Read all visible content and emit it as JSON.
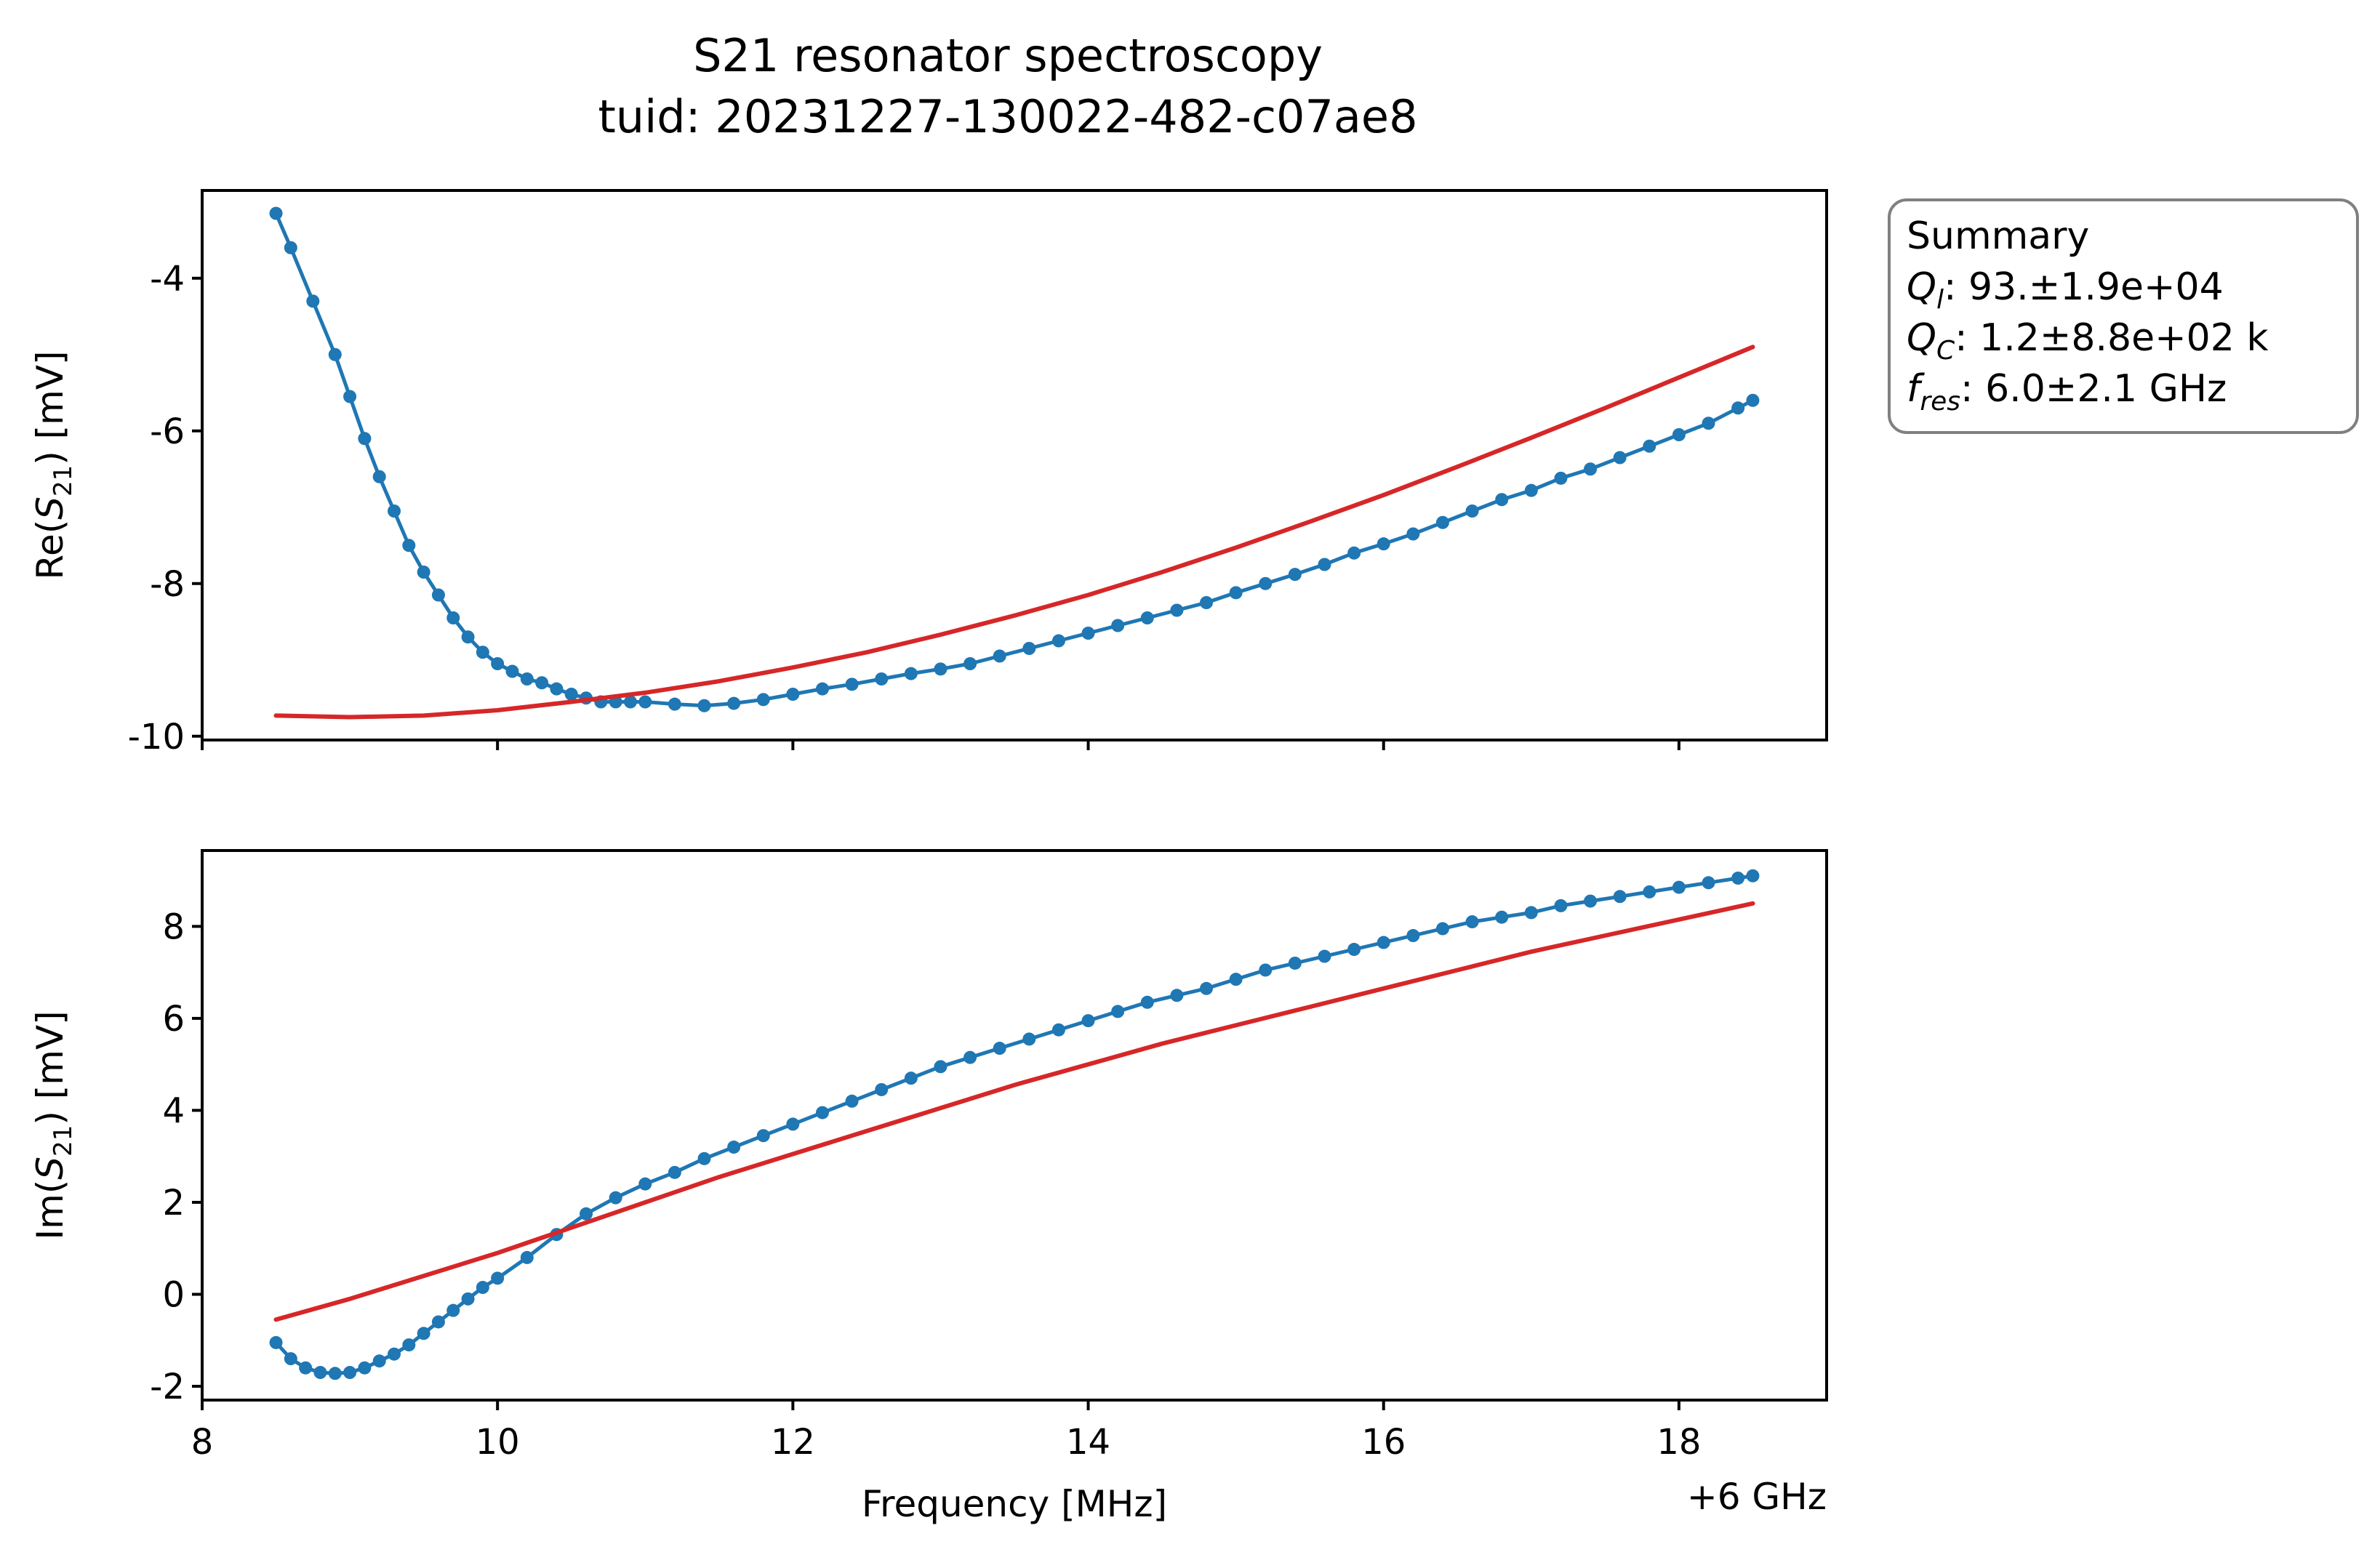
{
  "figure": {
    "title_line1": "S21 resonator spectroscopy",
    "title_line2": "tuid: 20231227-130022-482-c07ae8"
  },
  "summary_box": {
    "heading": "Summary",
    "rows": [
      {
        "sym": "Q",
        "sub": "l",
        "value": ": 93.±1.9e+04"
      },
      {
        "sym": "Q",
        "sub": "C",
        "value": ": 1.2±8.8e+02 k"
      },
      {
        "sym": "f",
        "sub": "res",
        "value": ": 6.0±2.1 GHz"
      }
    ],
    "border_color": "#808080"
  },
  "chart_data": [
    {
      "type": "line",
      "panel": "top",
      "ylabel_prefix": "Re(",
      "ylabel_sym": "S",
      "ylabel_sub": "21",
      "ylabel_suffix": ") [mV]",
      "xlim": [
        8,
        19
      ],
      "ylim": [
        -10.05,
        -2.85
      ],
      "xticks": [
        8,
        10,
        12,
        14,
        16,
        18
      ],
      "show_xtick_labels": false,
      "yticks": [
        -10,
        -8,
        -6,
        -4
      ],
      "ytick_labels": [
        "-10",
        "-8",
        "-6",
        "-4"
      ],
      "grid": false,
      "series": [
        {
          "role": "measured",
          "color": "#1f77b4",
          "style": "line+markers",
          "x": [
            8.5,
            8.6,
            8.75,
            8.9,
            9.0,
            9.1,
            9.2,
            9.3,
            9.4,
            9.5,
            9.6,
            9.7,
            9.8,
            9.9,
            10.0,
            10.1,
            10.2,
            10.3,
            10.4,
            10.5,
            10.6,
            10.7,
            10.8,
            10.9,
            11.0,
            11.2,
            11.4,
            11.6,
            11.8,
            12.0,
            12.2,
            12.4,
            12.6,
            12.8,
            13.0,
            13.2,
            13.4,
            13.6,
            13.8,
            14.0,
            14.2,
            14.4,
            14.6,
            14.8,
            15.0,
            15.2,
            15.4,
            15.6,
            15.8,
            16.0,
            16.2,
            16.4,
            16.6,
            16.8,
            17.0,
            17.2,
            17.4,
            17.6,
            17.8,
            18.0,
            18.2,
            18.4,
            18.5
          ],
          "y": [
            -3.15,
            -3.6,
            -4.3,
            -5.0,
            -5.55,
            -6.1,
            -6.6,
            -7.05,
            -7.5,
            -7.85,
            -8.15,
            -8.45,
            -8.7,
            -8.9,
            -9.05,
            -9.15,
            -9.25,
            -9.3,
            -9.38,
            -9.45,
            -9.5,
            -9.55,
            -9.55,
            -9.55,
            -9.55,
            -9.58,
            -9.6,
            -9.57,
            -9.52,
            -9.45,
            -9.38,
            -9.32,
            -9.25,
            -9.18,
            -9.12,
            -9.05,
            -8.95,
            -8.85,
            -8.75,
            -8.65,
            -8.55,
            -8.45,
            -8.35,
            -8.25,
            -8.12,
            -8.0,
            -7.88,
            -7.75,
            -7.6,
            -7.48,
            -7.35,
            -7.2,
            -7.05,
            -6.9,
            -6.78,
            -6.62,
            -6.5,
            -6.35,
            -6.2,
            -6.05,
            -5.9,
            -5.7,
            -5.6
          ]
        },
        {
          "role": "fit",
          "color": "#d62728",
          "style": "line",
          "x": [
            8.5,
            9.0,
            9.5,
            10.0,
            10.5,
            11.0,
            11.5,
            12.0,
            12.5,
            13.0,
            13.5,
            14.0,
            14.5,
            15.0,
            15.5,
            16.0,
            16.5,
            17.0,
            17.5,
            18.0,
            18.5
          ],
          "y": [
            -9.73,
            -9.75,
            -9.73,
            -9.66,
            -9.55,
            -9.43,
            -9.28,
            -9.1,
            -8.9,
            -8.67,
            -8.42,
            -8.15,
            -7.85,
            -7.53,
            -7.19,
            -6.84,
            -6.47,
            -6.09,
            -5.7,
            -5.3,
            -4.9
          ]
        }
      ]
    },
    {
      "type": "line",
      "panel": "bottom",
      "xlabel": "Frequency [MHz]",
      "x_offset_text": "+6 GHz",
      "ylabel_prefix": "Im(",
      "ylabel_sym": "S",
      "ylabel_sub": "21",
      "ylabel_suffix": ") [mV]",
      "xlim": [
        8,
        19
      ],
      "ylim": [
        -2.3,
        9.65
      ],
      "xticks": [
        8,
        10,
        12,
        14,
        16,
        18
      ],
      "xtick_labels": [
        "8",
        "10",
        "12",
        "14",
        "16",
        "18"
      ],
      "show_xtick_labels": true,
      "yticks": [
        -2,
        0,
        2,
        4,
        6,
        8
      ],
      "ytick_labels": [
        "-2",
        "0",
        "2",
        "4",
        "6",
        "8"
      ],
      "grid": false,
      "series": [
        {
          "role": "measured",
          "color": "#1f77b4",
          "style": "line+markers",
          "x": [
            8.5,
            8.6,
            8.7,
            8.8,
            8.9,
            9.0,
            9.1,
            9.2,
            9.3,
            9.4,
            9.5,
            9.6,
            9.7,
            9.8,
            9.9,
            10.0,
            10.2,
            10.4,
            10.6,
            10.8,
            11.0,
            11.2,
            11.4,
            11.6,
            11.8,
            12.0,
            12.2,
            12.4,
            12.6,
            12.8,
            13.0,
            13.2,
            13.4,
            13.6,
            13.8,
            14.0,
            14.2,
            14.4,
            14.6,
            14.8,
            15.0,
            15.2,
            15.4,
            15.6,
            15.8,
            16.0,
            16.2,
            16.4,
            16.6,
            16.8,
            17.0,
            17.2,
            17.4,
            17.6,
            17.8,
            18.0,
            18.2,
            18.4,
            18.5
          ],
          "y": [
            -1.05,
            -1.4,
            -1.6,
            -1.7,
            -1.72,
            -1.7,
            -1.6,
            -1.45,
            -1.3,
            -1.1,
            -0.85,
            -0.6,
            -0.35,
            -0.1,
            0.15,
            0.35,
            0.8,
            1.3,
            1.75,
            2.1,
            2.4,
            2.65,
            2.95,
            3.2,
            3.45,
            3.7,
            3.95,
            4.2,
            4.45,
            4.7,
            4.95,
            5.15,
            5.35,
            5.55,
            5.75,
            5.95,
            6.15,
            6.35,
            6.5,
            6.65,
            6.85,
            7.05,
            7.2,
            7.35,
            7.5,
            7.65,
            7.8,
            7.95,
            8.1,
            8.2,
            8.3,
            8.45,
            8.55,
            8.65,
            8.75,
            8.85,
            8.95,
            9.05,
            9.1
          ]
        },
        {
          "role": "fit",
          "color": "#d62728",
          "style": "line",
          "x": [
            8.5,
            9.0,
            9.5,
            10.0,
            10.5,
            11.0,
            11.5,
            12.0,
            12.5,
            13.0,
            13.5,
            14.0,
            14.5,
            15.0,
            15.5,
            16.0,
            16.5,
            17.0,
            17.5,
            18.0,
            18.5
          ],
          "y": [
            -0.55,
            -0.1,
            0.4,
            0.9,
            1.45,
            2.0,
            2.55,
            3.05,
            3.55,
            4.05,
            4.55,
            5.0,
            5.45,
            5.85,
            6.25,
            6.65,
            7.05,
            7.45,
            7.8,
            8.15,
            8.5
          ]
        }
      ]
    }
  ]
}
